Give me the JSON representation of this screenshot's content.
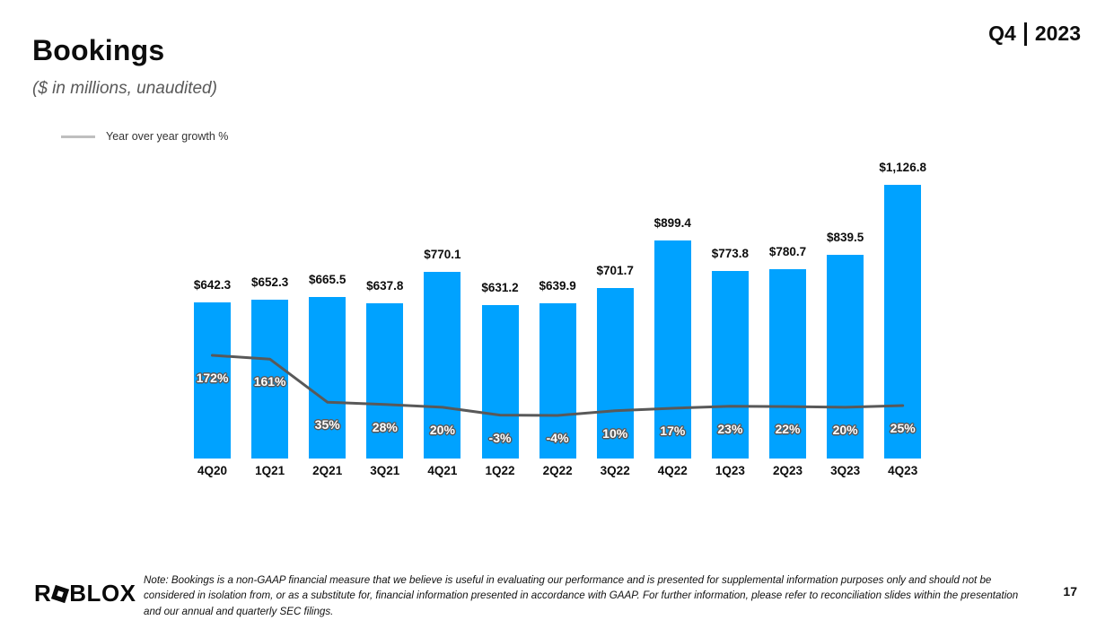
{
  "header": {
    "title": "Bookings",
    "subtitle": "($ in millions, unaudited)",
    "quarter": "Q4",
    "year": "2023"
  },
  "legend": {
    "label": "Year over year growth %"
  },
  "chart_data": {
    "type": "bar",
    "title": "Bookings ($ in millions, unaudited)",
    "categories": [
      "4Q20",
      "1Q21",
      "2Q21",
      "3Q21",
      "4Q21",
      "1Q22",
      "2Q22",
      "3Q22",
      "4Q22",
      "1Q23",
      "2Q23",
      "3Q23",
      "4Q23"
    ],
    "series": [
      {
        "name": "Bookings ($M)",
        "type": "bar",
        "values": [
          642.3,
          652.3,
          665.5,
          637.8,
          770.1,
          631.2,
          639.9,
          701.7,
          899.4,
          773.8,
          780.7,
          839.5,
          1126.8
        ]
      },
      {
        "name": "Year over year growth %",
        "type": "line",
        "values": [
          172,
          161,
          35,
          28,
          20,
          -3,
          -4,
          10,
          17,
          23,
          22,
          20,
          25
        ]
      }
    ],
    "bar_labels": [
      "$642.3",
      "$652.3",
      "$665.5",
      "$637.8",
      "$770.1",
      "$631.2",
      "$639.9",
      "$701.7",
      "$899.4",
      "$773.8",
      "$780.7",
      "$839.5",
      "$1,126.8"
    ],
    "growth_labels": [
      "172%",
      "161%",
      "35%",
      "28%",
      "20%",
      "-3%",
      "-4%",
      "10%",
      "17%",
      "23%",
      "22%",
      "20%",
      "25%"
    ],
    "bar_color": "#00A2FF",
    "line_color": "#595959",
    "legend_position": "top-left",
    "grid": false,
    "axis_lines": false
  },
  "footer": {
    "logo_r": "R",
    "logo_blox": "BLOX",
    "note": "Note: Bookings is a non-GAAP financial measure that we believe is useful in evaluating our performance and is presented for supplemental information purposes only and should not be considered in isolation from, or as a substitute for, financial information presented in accordance with GAAP. For further information, please refer to reconciliation slides within the presentation and our annual and quarterly SEC filings.",
    "page_number": "17"
  }
}
